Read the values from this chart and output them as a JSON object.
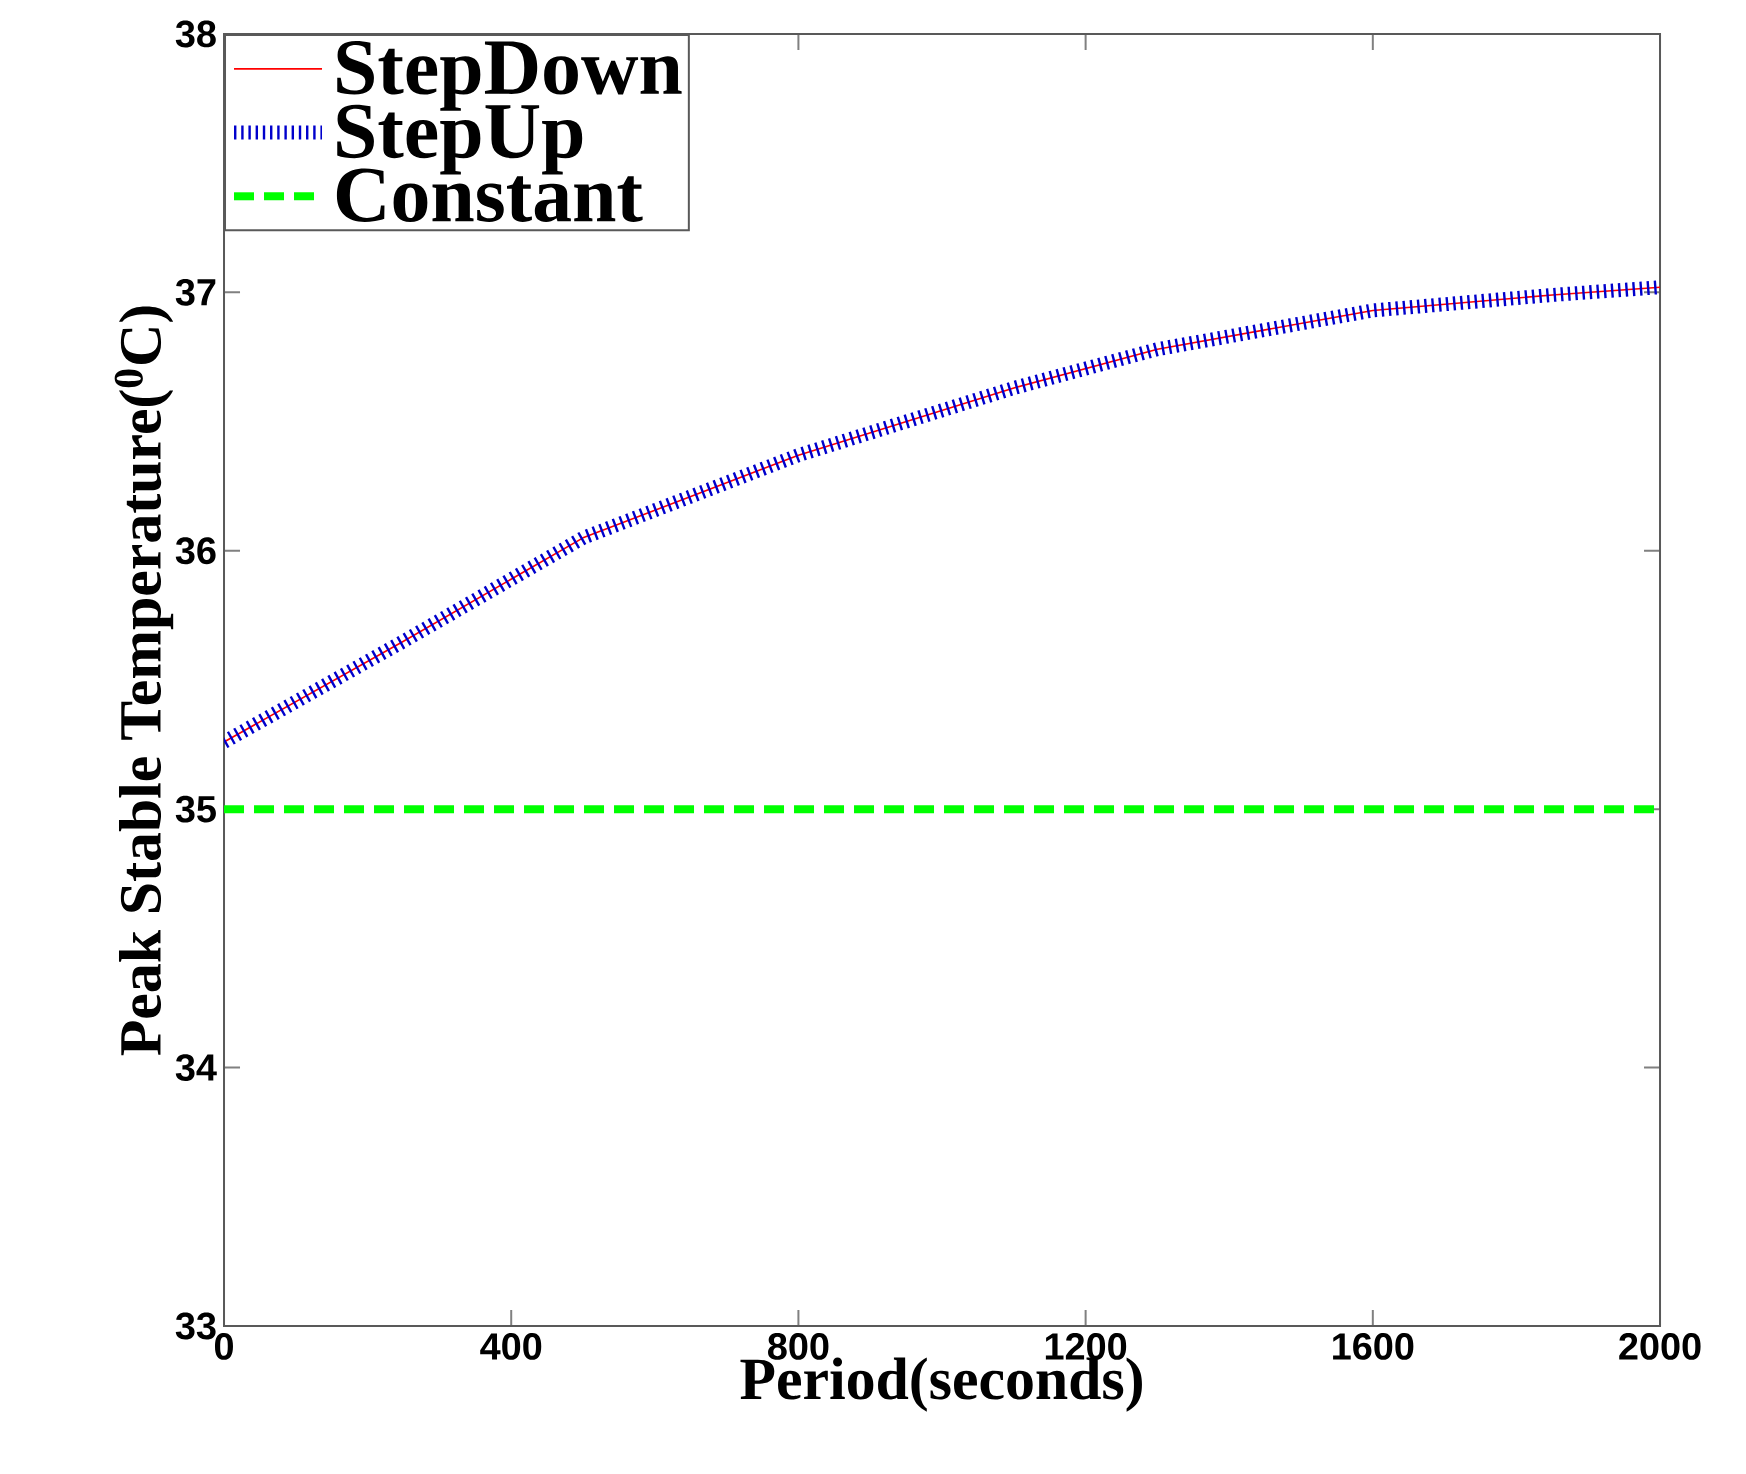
{
  "chart_data": {
    "type": "line",
    "xlabel": "Period(seconds)",
    "ylabel": "Peak  Stable Temperature($^{0}$C)",
    "xlim": [
      0,
      2000
    ],
    "ylim": [
      33,
      38
    ],
    "xticks": [
      0,
      400,
      800,
      1200,
      1600,
      2000
    ],
    "yticks": [
      33,
      34,
      35,
      36,
      37,
      38
    ],
    "grid": false,
    "legend": "top left",
    "series": [
      {
        "name": "StepDown",
        "color": "#ff0000",
        "line_style": "solid",
        "x": [
          0,
          250,
          500,
          800,
          1100,
          1300,
          1600,
          1850,
          2000
        ],
        "values": [
          35.26,
          35.65,
          36.05,
          36.37,
          36.63,
          36.78,
          36.93,
          36.99,
          37.02
        ]
      },
      {
        "name": "StepUp",
        "color": "#0000cc",
        "line_style": "dotted",
        "x": [
          0,
          250,
          500,
          800,
          1100,
          1300,
          1600,
          1850,
          2000
        ],
        "values": [
          35.26,
          35.65,
          36.05,
          36.37,
          36.63,
          36.78,
          36.93,
          36.99,
          37.02
        ]
      },
      {
        "name": "Constant",
        "color": "#00ff00",
        "line_style": "dashed",
        "x": [
          0,
          2000
        ],
        "values": [
          35,
          35
        ]
      }
    ]
  }
}
